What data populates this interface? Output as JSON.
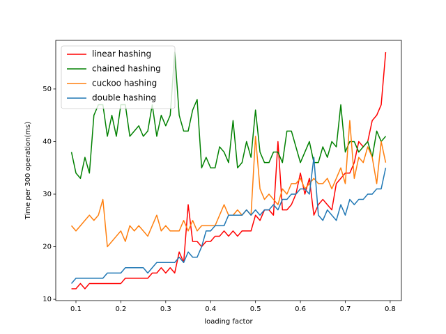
{
  "chart_data": {
    "type": "line",
    "xlabel": "loading factor",
    "ylabel": "Time per 300 operation(ms)",
    "x": [
      0.09,
      0.1,
      0.11,
      0.12,
      0.13,
      0.14,
      0.15,
      0.16,
      0.17,
      0.18,
      0.19,
      0.2,
      0.21,
      0.22,
      0.23,
      0.24,
      0.25,
      0.26,
      0.27,
      0.28,
      0.29,
      0.3,
      0.31,
      0.32,
      0.33,
      0.34,
      0.35,
      0.36,
      0.37,
      0.38,
      0.39,
      0.4,
      0.41,
      0.42,
      0.43,
      0.44,
      0.45,
      0.46,
      0.47,
      0.48,
      0.49,
      0.5,
      0.51,
      0.52,
      0.53,
      0.54,
      0.55,
      0.56,
      0.57,
      0.58,
      0.59,
      0.6,
      0.61,
      0.62,
      0.63,
      0.64,
      0.65,
      0.66,
      0.67,
      0.68,
      0.69,
      0.7,
      0.71,
      0.72,
      0.73,
      0.74,
      0.75,
      0.76,
      0.77,
      0.78,
      0.79
    ],
    "series": [
      {
        "name": "linear hashing",
        "color": "#ff0000",
        "values": [
          12,
          12,
          13,
          12,
          13,
          13,
          13,
          13,
          13,
          13,
          13,
          13,
          14,
          14,
          14,
          14,
          14,
          14,
          15,
          15,
          16,
          15,
          16,
          15,
          19,
          17,
          28,
          21,
          21,
          20,
          21,
          21,
          22,
          22,
          23,
          22,
          23,
          22,
          23,
          23,
          23,
          26,
          25,
          27,
          27,
          26,
          40,
          27,
          27,
          28,
          30,
          34,
          30,
          33,
          26,
          28,
          29,
          28,
          27,
          32,
          33,
          34,
          34,
          36,
          40,
          39,
          40,
          44,
          45,
          47,
          57
        ]
      },
      {
        "name": "chained hashing",
        "color": "#008000",
        "values": [
          38,
          34,
          33,
          37,
          34,
          45,
          47,
          47,
          41,
          45,
          41,
          47,
          47,
          41,
          42,
          43,
          41,
          42,
          47,
          41,
          45,
          43,
          45,
          57,
          45,
          42,
          42,
          46,
          48,
          35,
          37,
          35,
          35,
          39,
          38,
          36,
          44,
          35,
          36,
          40,
          37,
          46,
          38,
          36,
          36,
          38,
          38,
          36,
          42,
          42,
          39,
          36,
          38,
          40,
          36,
          36,
          39,
          37,
          40,
          39,
          47,
          38,
          40,
          40,
          38,
          39,
          40,
          37,
          42,
          40,
          41
        ]
      },
      {
        "name": "cuckoo hashing",
        "color": "#ff7f0e",
        "values": [
          24,
          23,
          24,
          25,
          26,
          25,
          26,
          29,
          20,
          21,
          22,
          23,
          21,
          24,
          23,
          24,
          23,
          22,
          24,
          26,
          23,
          24,
          23,
          23,
          23,
          25,
          23,
          25,
          23,
          24,
          24,
          24,
          24,
          26,
          28,
          26,
          26,
          27,
          26,
          27,
          26,
          41,
          31,
          29,
          30,
          29,
          28,
          31,
          30,
          32,
          32,
          33,
          31,
          32,
          33,
          32,
          32,
          33,
          31,
          33,
          35,
          32,
          44,
          33,
          37,
          36,
          39,
          37,
          32,
          40,
          36
        ]
      },
      {
        "name": "double hashing",
        "color": "#1f77b4",
        "values": [
          13,
          14,
          14,
          14,
          14,
          14,
          14,
          14,
          15,
          15,
          15,
          15,
          16,
          16,
          16,
          16,
          16,
          15,
          16,
          17,
          17,
          17,
          17,
          17,
          18,
          17,
          19,
          18,
          18,
          20,
          23,
          23,
          24,
          24,
          24,
          26,
          26,
          26,
          26,
          27,
          26,
          27,
          26,
          27,
          27,
          28,
          27,
          29,
          29,
          30,
          30,
          31,
          31,
          30,
          37,
          26,
          25,
          27,
          26,
          25,
          28,
          26,
          29,
          28,
          29,
          29,
          30,
          30,
          31,
          31,
          35
        ]
      }
    ],
    "xlim": [
      0.055,
      0.825
    ],
    "ylim": [
      9.75,
      59.25
    ],
    "xticks": [
      0.1,
      0.2,
      0.3,
      0.4,
      0.5,
      0.6,
      0.7,
      0.8
    ],
    "yticks": [
      10,
      20,
      30,
      40,
      50
    ],
    "legend": "upper left"
  }
}
